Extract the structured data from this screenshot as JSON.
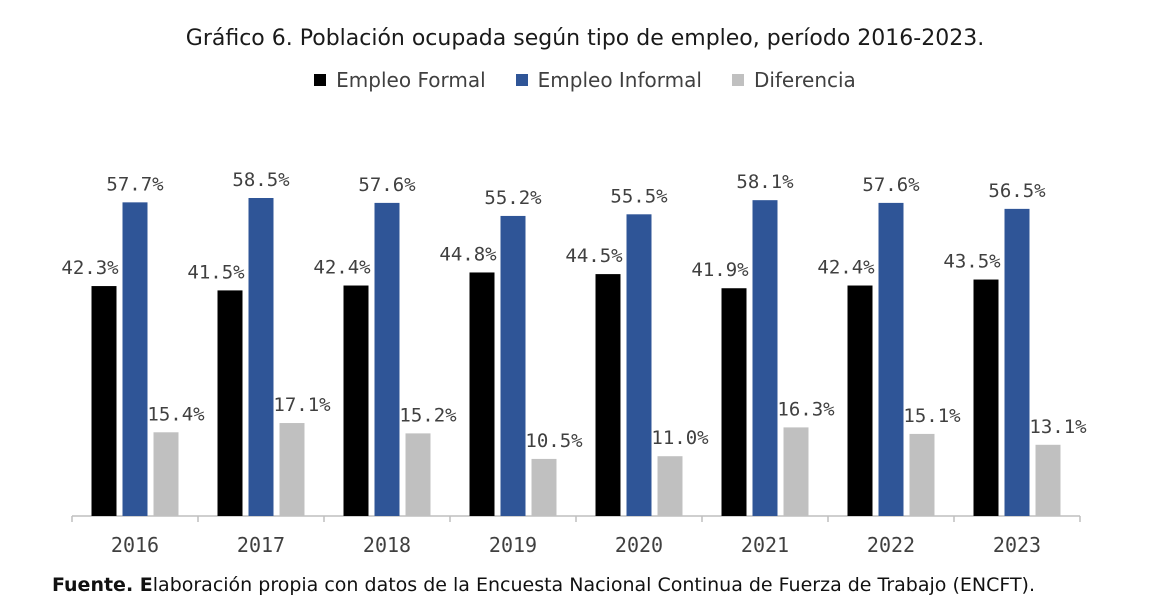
{
  "chart_data": {
    "type": "bar",
    "title": "Gráfico 6. Población ocupada según tipo de empleo, período 2016-2023.",
    "categories": [
      "2016",
      "2017",
      "2018",
      "2019",
      "2020",
      "2021",
      "2022",
      "2023"
    ],
    "series": [
      {
        "name": "Empleo Formal",
        "color": "#000000",
        "values": [
          42.3,
          41.5,
          42.4,
          44.8,
          44.5,
          41.9,
          42.4,
          43.5
        ]
      },
      {
        "name": "Empleo Informal",
        "color": "#2f5597",
        "values": [
          57.7,
          58.5,
          57.6,
          55.2,
          55.5,
          58.1,
          57.6,
          56.5
        ]
      },
      {
        "name": "Diferencia",
        "color": "#c0c0c0",
        "values": [
          15.4,
          17.1,
          15.2,
          10.5,
          11.0,
          16.3,
          15.1,
          13.1
        ]
      }
    ],
    "value_suffix": "%",
    "ylim": [
      0,
      60
    ],
    "legend_position": "top"
  },
  "source": {
    "label": "Fuente. E",
    "text": "laboración propia con datos de la Encuesta Nacional Continua de Fuerza de Trabajo (ENCFT)."
  }
}
